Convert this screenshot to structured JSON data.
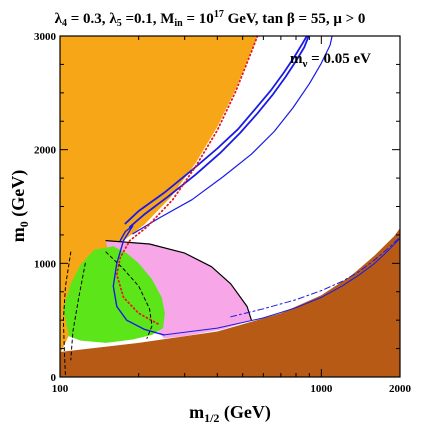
{
  "chart_data": {
    "type": "area",
    "title": {
      "l4": "λ",
      "l4_sub": "4",
      "l4_val": " = 0.3,  ",
      "l5": "λ",
      "l5_sub": "5",
      "l5_val": " =0.1, M",
      "min_sub": "in",
      "min_val": " = 10",
      "min_exp": "17",
      "rest": " GeV, tan β = 55,  μ > 0"
    },
    "annotation": {
      "main": "m",
      "sub": "ν",
      "value": " = 0.05 eV"
    },
    "xlabel": {
      "main": "m",
      "sub": "1/2",
      "unit": " (GeV)"
    },
    "ylabel": {
      "main": "m",
      "sub": "0",
      "unit": " (GeV)"
    },
    "xlim": [
      100,
      2000
    ],
    "ylim": [
      0,
      3000
    ],
    "xticks": [
      {
        "value": 100,
        "label": "100"
      },
      {
        "value": 1000,
        "label": "1000"
      },
      {
        "value": 2000,
        "label": "2000"
      }
    ],
    "yticks": [
      {
        "value": 0,
        "label": "0"
      },
      {
        "value": 1000,
        "label": "1000"
      },
      {
        "value": 2000,
        "label": "2000"
      },
      {
        "value": 3000,
        "label": "3000"
      }
    ],
    "colors": {
      "orange": "#f7a617",
      "brown": "#b75a16",
      "green": "#5ce61a",
      "pink": "#f7a6e8",
      "blue": "#1a1ae8",
      "red": "#e81a1a",
      "black": "#000000"
    },
    "regions": [
      {
        "name": "orange-region",
        "color": "orange",
        "points": [
          [
            100,
            3000
          ],
          [
            570,
            3000
          ],
          [
            540,
            2870
          ],
          [
            470,
            2530
          ],
          [
            400,
            2200
          ],
          [
            330,
            1880
          ],
          [
            265,
            1580
          ],
          [
            210,
            1340
          ],
          [
            175,
            1200
          ],
          [
            150,
            1070
          ],
          [
            125,
            800
          ],
          [
            110,
            400
          ],
          [
            100,
            200
          ]
        ]
      },
      {
        "name": "brown-region",
        "color": "brown",
        "points": [
          [
            100,
            0
          ],
          [
            2000,
            0
          ],
          [
            2000,
            1310
          ],
          [
            1900,
            1240
          ],
          [
            1600,
            1070
          ],
          [
            1300,
            890
          ],
          [
            1000,
            720
          ],
          [
            700,
            560
          ],
          [
            400,
            400
          ],
          [
            200,
            300
          ],
          [
            100,
            220
          ]
        ]
      },
      {
        "name": "pink-region",
        "color": "pink",
        "points": [
          [
            150,
            1200
          ],
          [
            220,
            1170
          ],
          [
            300,
            1090
          ],
          [
            380,
            970
          ],
          [
            450,
            820
          ],
          [
            520,
            620
          ],
          [
            540,
            500
          ],
          [
            420,
            420
          ],
          [
            300,
            360
          ],
          [
            250,
            340
          ],
          [
            220,
            490
          ],
          [
            180,
            580
          ],
          [
            160,
            800
          ]
        ]
      },
      {
        "name": "green-region",
        "color": "green",
        "points": [
          [
            135,
            1120
          ],
          [
            160,
            1150
          ],
          [
            180,
            1090
          ],
          [
            200,
            1000
          ],
          [
            225,
            860
          ],
          [
            245,
            700
          ],
          [
            252,
            560
          ],
          [
            248,
            430
          ],
          [
            225,
            370
          ],
          [
            190,
            330
          ],
          [
            150,
            300
          ],
          [
            120,
            320
          ],
          [
            108,
            360
          ],
          [
            103,
            600
          ],
          [
            110,
            820
          ],
          [
            120,
            990
          ]
        ]
      }
    ],
    "curves": [
      {
        "name": "pink-boundary-curve",
        "color": "black",
        "width": 1.2,
        "dash": "",
        "points": [
          [
            150,
            1200
          ],
          [
            220,
            1170
          ],
          [
            300,
            1090
          ],
          [
            380,
            970
          ],
          [
            450,
            820
          ],
          [
            520,
            620
          ],
          [
            540,
            500
          ]
        ]
      },
      {
        "name": "blue-band-curve-1",
        "color": "blue",
        "width": 1.8,
        "dash": "",
        "points": [
          [
            178,
            1350
          ],
          [
            200,
            1460
          ],
          [
            250,
            1620
          ],
          [
            320,
            1820
          ],
          [
            400,
            2010
          ],
          [
            480,
            2180
          ],
          [
            560,
            2360
          ],
          [
            640,
            2520
          ],
          [
            720,
            2680
          ],
          [
            790,
            2820
          ],
          [
            850,
            2940
          ],
          [
            880,
            3000
          ]
        ]
      },
      {
        "name": "blue-band-curve-2",
        "color": "blue",
        "width": 1.8,
        "dash": "",
        "points": [
          [
            185,
            1320
          ],
          [
            210,
            1430
          ],
          [
            260,
            1590
          ],
          [
            330,
            1780
          ],
          [
            410,
            1970
          ],
          [
            490,
            2150
          ],
          [
            570,
            2320
          ],
          [
            650,
            2480
          ],
          [
            730,
            2640
          ],
          [
            800,
            2780
          ],
          [
            860,
            2900
          ],
          [
            895,
            3000
          ]
        ]
      },
      {
        "name": "blue-outer-curve",
        "color": "blue",
        "width": 1.2,
        "dash": "",
        "points": [
          [
            190,
            1260
          ],
          [
            240,
            1400
          ],
          [
            320,
            1560
          ],
          [
            420,
            1760
          ],
          [
            540,
            1960
          ],
          [
            660,
            2160
          ],
          [
            780,
            2370
          ],
          [
            900,
            2580
          ],
          [
            1000,
            2760
          ],
          [
            1080,
            2920
          ],
          [
            1100,
            3000
          ]
        ]
      },
      {
        "name": "blue-inner-curve",
        "color": "blue",
        "width": 1.4,
        "dash": "",
        "points": [
          [
            170,
            1200
          ],
          [
            178,
            1280
          ],
          [
            190,
            1330
          ],
          [
            175,
            1200
          ],
          [
            165,
            1000
          ],
          [
            160,
            800
          ],
          [
            165,
            620
          ],
          [
            180,
            500
          ],
          [
            210,
            420
          ],
          [
            250,
            370
          ]
        ]
      },
      {
        "name": "blue-lower-line",
        "color": "blue",
        "width": 1.0,
        "dash": "",
        "points": [
          [
            250,
            370
          ],
          [
            400,
            430
          ],
          [
            600,
            520
          ],
          [
            800,
            610
          ],
          [
            1000,
            700
          ],
          [
            1200,
            800
          ],
          [
            1400,
            900
          ],
          [
            1600,
            1000
          ],
          [
            1800,
            1110
          ],
          [
            2000,
            1220
          ]
        ]
      },
      {
        "name": "blue-dashdot-line",
        "color": "blue",
        "width": 1.0,
        "dash": "6,3,2,3",
        "points": [
          [
            450,
            530
          ],
          [
            600,
            600
          ],
          [
            800,
            680
          ],
          [
            1000,
            760
          ],
          [
            1200,
            840
          ],
          [
            1400,
            930
          ],
          [
            1600,
            1030
          ],
          [
            1800,
            1130
          ],
          [
            2000,
            1230
          ]
        ]
      },
      {
        "name": "red-dotted-curve",
        "color": "red",
        "width": 1.8,
        "dash": "1,3",
        "points": [
          [
            570,
            3000
          ],
          [
            540,
            2860
          ],
          [
            470,
            2510
          ],
          [
            400,
            2170
          ],
          [
            330,
            1850
          ],
          [
            270,
            1560
          ],
          [
            215,
            1320
          ],
          [
            185,
            1200
          ],
          [
            170,
            1050
          ],
          [
            165,
            900
          ],
          [
            175,
            700
          ],
          [
            200,
            560
          ],
          [
            240,
            460
          ]
        ]
      },
      {
        "name": "black-dashed-curve",
        "color": "black",
        "width": 1.0,
        "dash": "3,3",
        "points": [
          [
            110,
            1100
          ],
          [
            105,
            800
          ],
          [
            103,
            500
          ],
          [
            104,
            200
          ],
          [
            105,
            0
          ]
        ]
      },
      {
        "name": "black-dashed-curve-2",
        "color": "black",
        "width": 1.0,
        "dash": "3,3",
        "points": [
          [
            125,
            1000
          ],
          [
            118,
            700
          ],
          [
            112,
            400
          ],
          [
            110,
            150
          ]
        ]
      },
      {
        "name": "black-dashed-curve-3",
        "color": "black",
        "width": 1.0,
        "dash": "3,3",
        "points": [
          [
            150,
            1100
          ],
          [
            175,
            950
          ],
          [
            200,
            800
          ],
          [
            220,
            600
          ],
          [
            225,
            450
          ],
          [
            215,
            340
          ]
        ]
      }
    ]
  }
}
